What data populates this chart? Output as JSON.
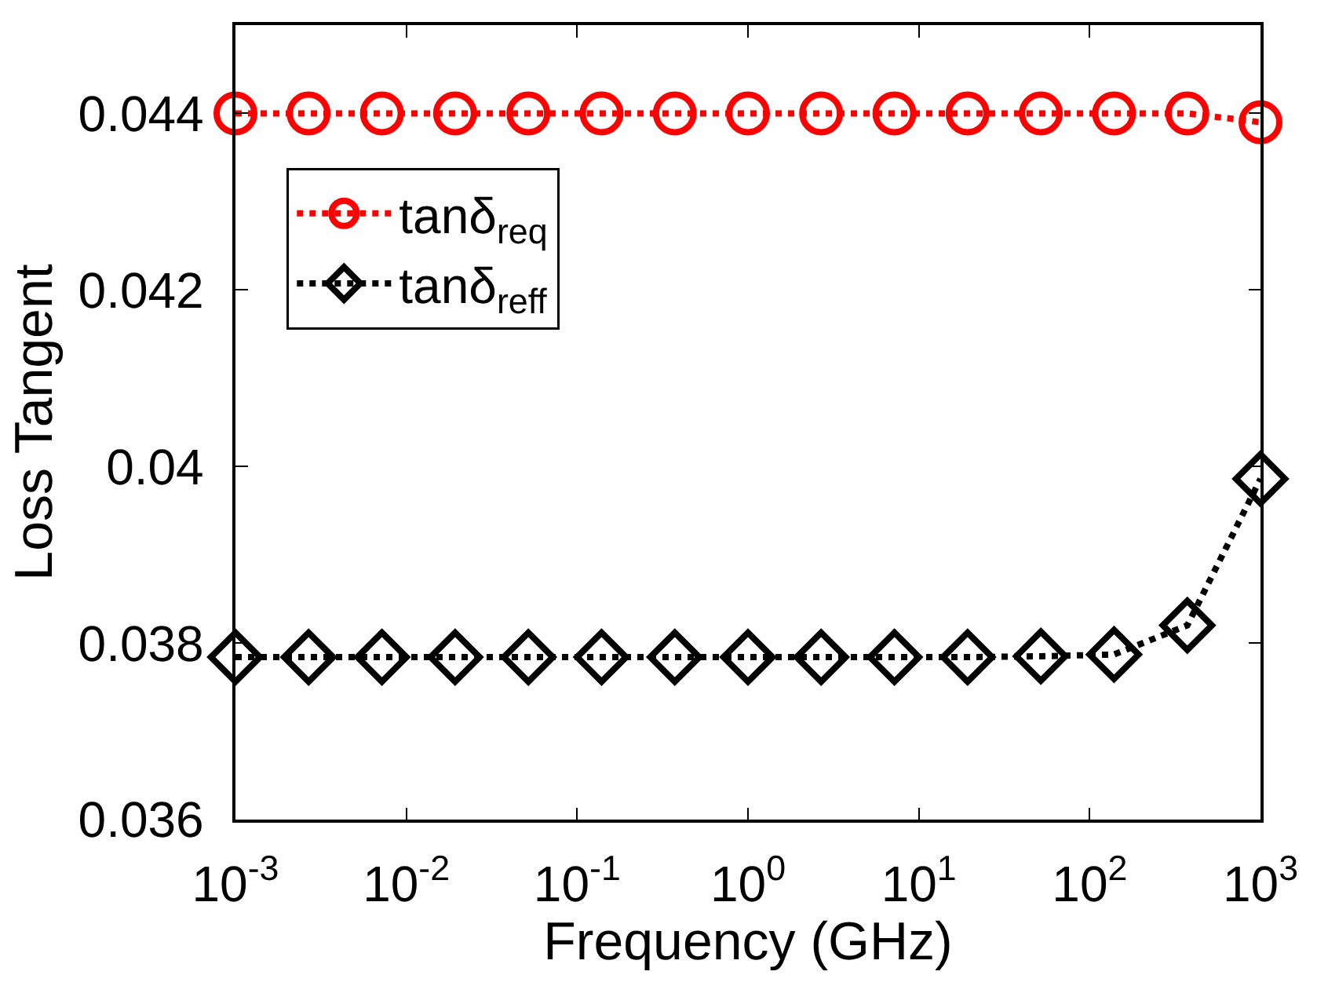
{
  "chart_data": {
    "type": "line",
    "xlabel": "Frequency (GHz)",
    "ylabel": "Loss Tangent",
    "log": "x",
    "x": [
      0.001,
      0.00268,
      0.0072,
      0.0193,
      0.0518,
      0.139,
      0.373,
      1,
      2.68,
      7.2,
      19.3,
      51.8,
      139,
      373,
      1000
    ],
    "series": [
      {
        "name": "tanδ$_{req}$",
        "color": "#ff0000",
        "marker": "circle",
        "values": [
          0.044,
          0.044,
          0.044,
          0.044,
          0.044,
          0.044,
          0.044,
          0.044,
          0.044,
          0.044,
          0.044,
          0.044,
          0.044,
          0.044,
          0.0439
        ]
      },
      {
        "name": "tanδ$_{reff}$",
        "color": "#000000",
        "marker": "diamond",
        "values": [
          0.03784,
          0.03784,
          0.03784,
          0.03784,
          0.03784,
          0.03784,
          0.03784,
          0.03784,
          0.03784,
          0.03784,
          0.03784,
          0.03785,
          0.03787,
          0.0382,
          0.03986
        ]
      }
    ],
    "xlim": [
      0.001,
      1000
    ],
    "xticks": [
      {
        "value": 0.001,
        "label": "10$^{-3}$"
      },
      {
        "value": 0.01,
        "label": "10$^{-2}$"
      },
      {
        "value": 0.1,
        "label": "10$^{-1}$"
      },
      {
        "value": 1,
        "label": "10$^{0}$"
      },
      {
        "value": 10,
        "label": "10$^{1}$"
      },
      {
        "value": 100,
        "label": "10$^{2}$"
      },
      {
        "value": 1000,
        "label": "10$^{3}$"
      }
    ],
    "ylim": [
      0.036,
      0.045
    ],
    "yticks": [
      0.036,
      0.038,
      0.04,
      0.042,
      0.044
    ],
    "line_style": "dotted",
    "grid": false,
    "legend": "top left"
  }
}
